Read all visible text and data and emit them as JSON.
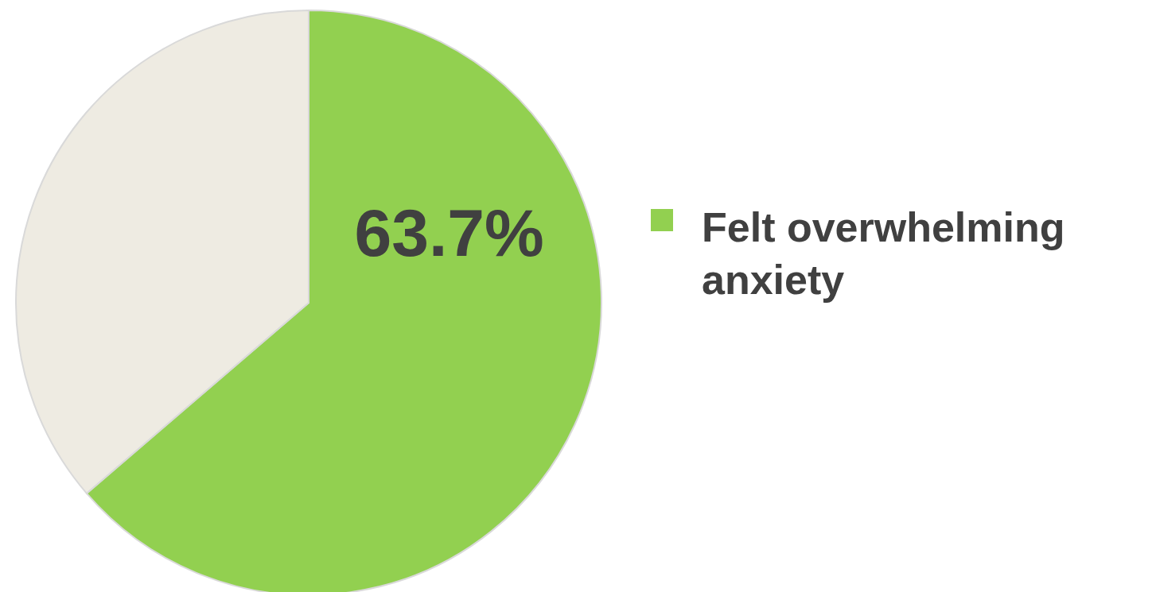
{
  "chart_data": {
    "type": "pie",
    "categories": [
      "Felt overwhelming anxiety",
      null
    ],
    "values": [
      63.7,
      36.3
    ],
    "colors": [
      "#92d050",
      "#eeebe2"
    ],
    "value_labels": [
      "63.7%",
      null
    ],
    "legend": "right"
  }
}
